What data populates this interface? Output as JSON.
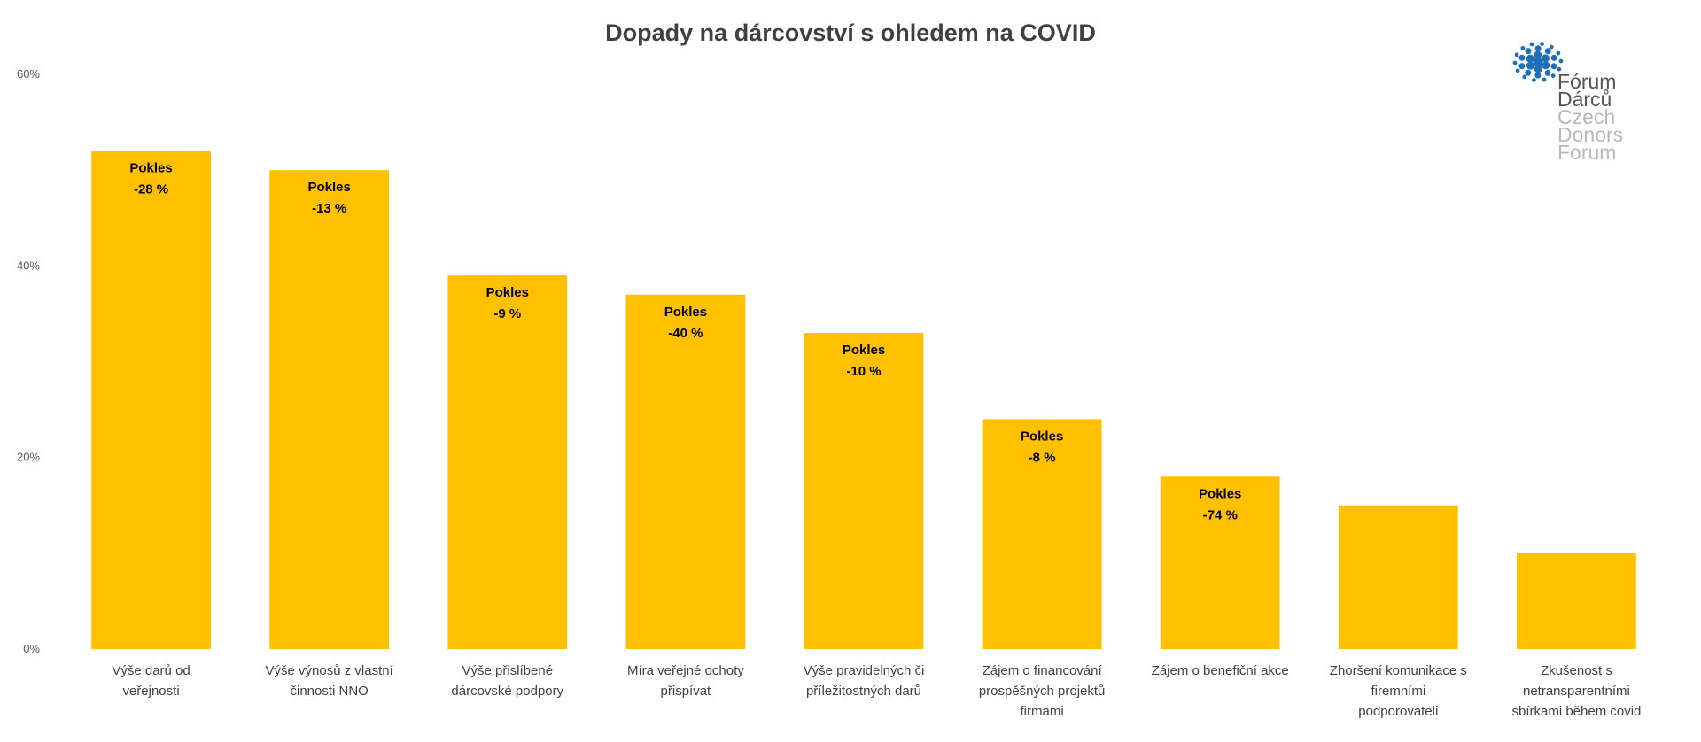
{
  "chart_data": {
    "type": "bar",
    "title": "Dopady na dárcovství s ohledem na COVID",
    "xlabel": "",
    "ylabel": "",
    "ylim": [
      0,
      60
    ],
    "y_ticks": [
      "0%",
      "20%",
      "40%",
      "60%"
    ],
    "y_tick_values": [
      0,
      20,
      40,
      60
    ],
    "grid": false,
    "bar_color": "#FFC000",
    "categories": [
      [
        "Výše darů od",
        "veřejnosti"
      ],
      [
        "Výše výnosů z vlastní",
        "činnosti NNO"
      ],
      [
        "Výše přislíbené",
        "dárcovské podpory"
      ],
      [
        "Míra veřejné ochoty",
        "přispívat"
      ],
      [
        "Výše pravidelných či",
        "příležitostných darů"
      ],
      [
        "Zájem o financování",
        "prospěšných projektů",
        "firmami"
      ],
      [
        "Zájem o benefiční akce"
      ],
      [
        "Zhoršení komunikace s",
        "firemními",
        "podporovateli"
      ],
      [
        "Zkušenost s",
        "netransparentními",
        "sbírkami během covid"
      ]
    ],
    "values": [
      52,
      50,
      39,
      37,
      33,
      24,
      18,
      15,
      10
    ],
    "data_labels": [
      [
        "Pokles",
        "-28 %"
      ],
      [
        "Pokles",
        "-13 %"
      ],
      [
        "Pokles",
        "-9 %"
      ],
      [
        "Pokles",
        "-40 %"
      ],
      [
        "Pokles",
        "-10 %"
      ],
      [
        "Pokles",
        "-8 %"
      ],
      [
        "Pokles",
        "-74 %"
      ],
      [],
      []
    ]
  },
  "logo": {
    "lines_strong": [
      "Fórum",
      "Dárců"
    ],
    "lines_light": [
      "Czech",
      "Donors",
      "Forum"
    ],
    "primary_color": "#1F6FB8"
  }
}
